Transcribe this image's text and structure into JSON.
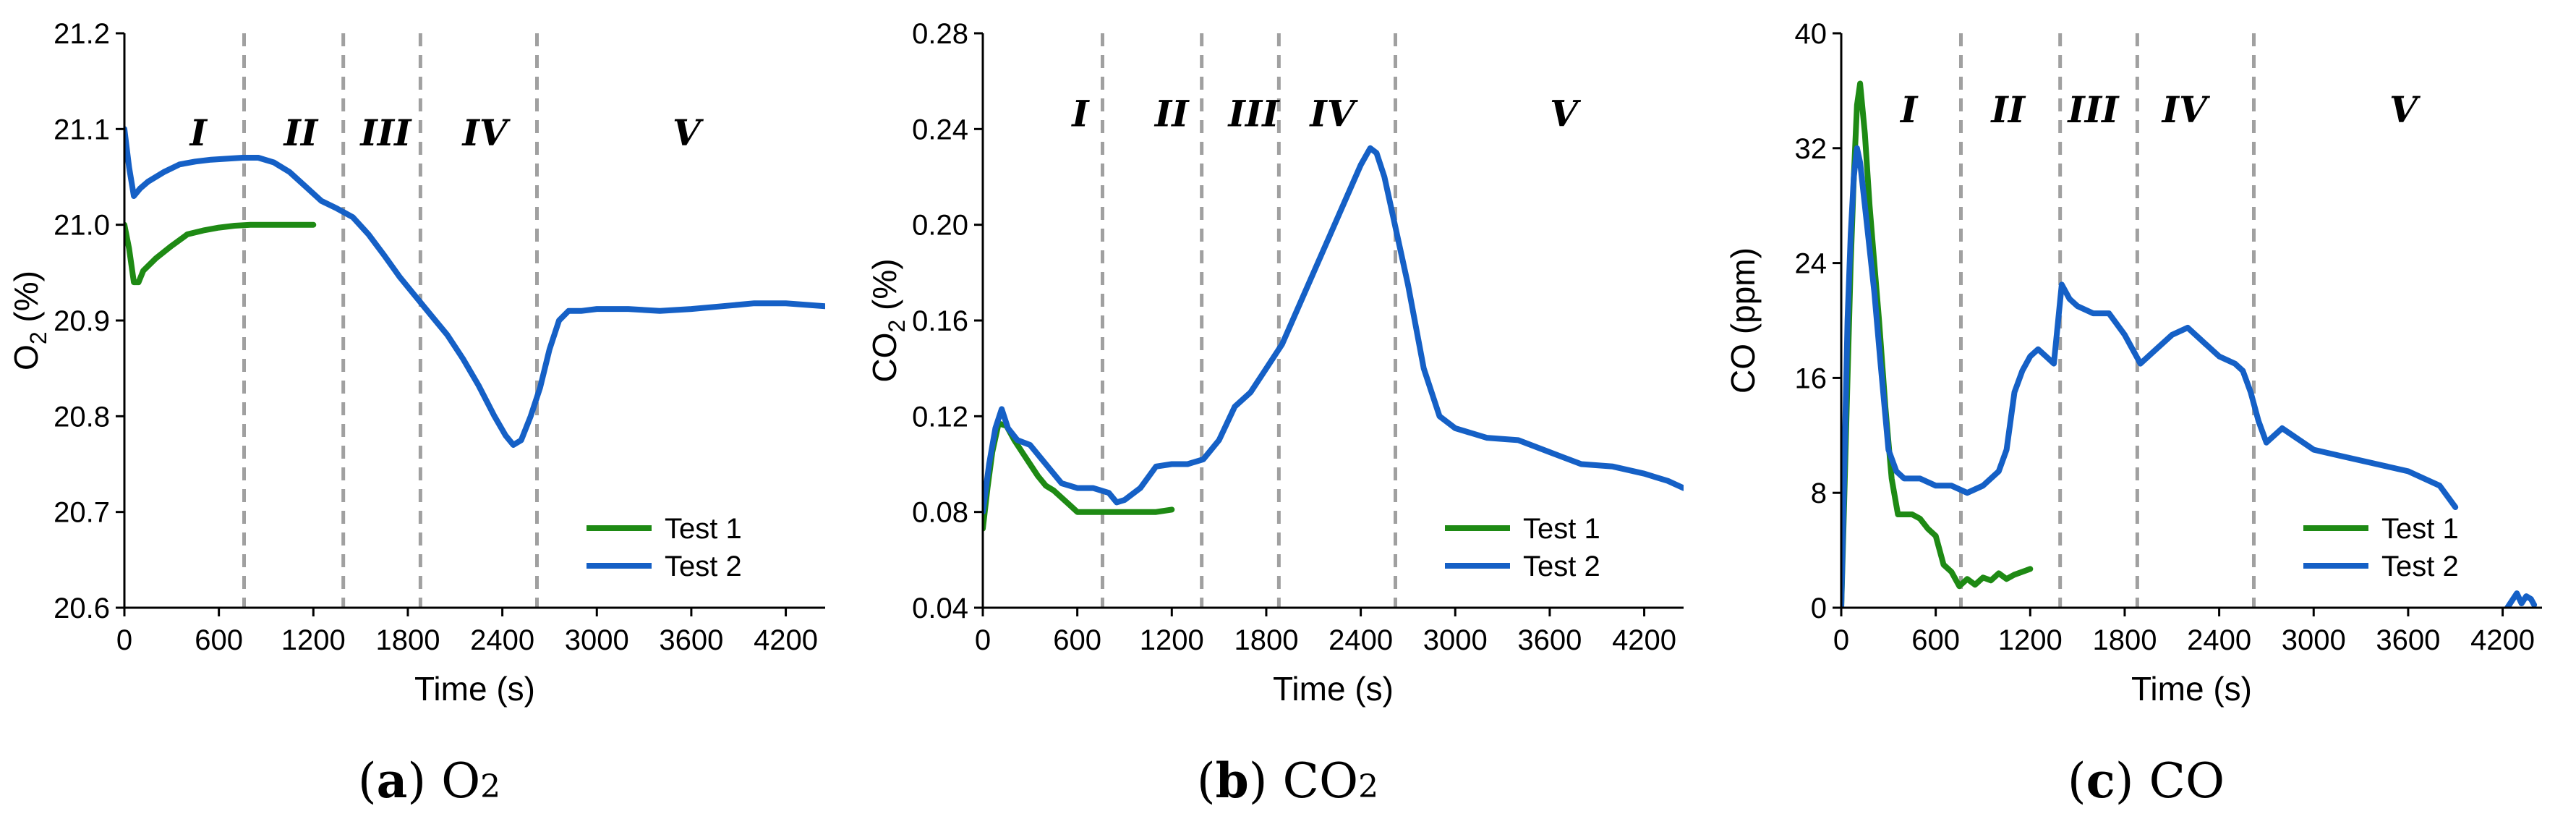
{
  "colors": {
    "test1": "#1e8a14",
    "test2": "#1560c6",
    "phase_line": "#a0a0a0",
    "axis": "#000000"
  },
  "x_axis": {
    "label": "Time (s)",
    "min": 0,
    "max": 4450,
    "ticks": [
      0,
      600,
      1200,
      1800,
      2400,
      3000,
      3600,
      4200
    ]
  },
  "phase_bounds": [
    760,
    1390,
    1880,
    2620
  ],
  "legend": [
    "Test 1",
    "Test 2"
  ],
  "chart_data": [
    {
      "type": "line",
      "panel_id": "a",
      "caption": {
        "letter": "a",
        "text": "O",
        "sub": "2"
      },
      "ylabel": {
        "main": "O",
        "sub": "2",
        "rest": " (%)"
      },
      "ylim": [
        20.6,
        21.2
      ],
      "yticks": [
        "20.6",
        "20.7",
        "20.8",
        "20.9",
        "21.0",
        "21.1",
        "21.2"
      ],
      "phases": [
        {
          "label": "I",
          "x": 470
        },
        {
          "label": "II",
          "x": 1120
        },
        {
          "label": "III",
          "x": 1660
        },
        {
          "label": "IV",
          "x": 2290
        },
        {
          "label": "V",
          "x": 3570
        }
      ],
      "phase_label_y": 21.095,
      "series": [
        {
          "name": "Test 1",
          "color": "#1e8a14",
          "x": [
            0,
            30,
            60,
            90,
            120,
            200,
            300,
            400,
            500,
            600,
            700,
            800,
            900,
            1000,
            1100,
            1200
          ],
          "y": [
            21.0,
            20.975,
            20.94,
            20.94,
            20.952,
            20.965,
            20.978,
            20.99,
            20.994,
            20.997,
            20.999,
            21.0,
            21.0,
            21.0,
            21.0,
            21.0
          ]
        },
        {
          "name": "Test 2",
          "color": "#1560c6",
          "x": [
            0,
            30,
            60,
            100,
            150,
            250,
            350,
            450,
            550,
            650,
            750,
            850,
            950,
            1050,
            1150,
            1250,
            1350,
            1450,
            1550,
            1650,
            1750,
            1850,
            1950,
            2050,
            2150,
            2250,
            2350,
            2420,
            2470,
            2520,
            2580,
            2640,
            2700,
            2760,
            2820,
            2900,
            3000,
            3200,
            3400,
            3600,
            3800,
            4000,
            4200,
            4450
          ],
          "y": [
            21.1,
            21.06,
            21.03,
            21.038,
            21.045,
            21.055,
            21.063,
            21.066,
            21.068,
            21.069,
            21.07,
            21.07,
            21.065,
            21.055,
            21.04,
            21.025,
            21.017,
            21.008,
            20.99,
            20.968,
            20.945,
            20.925,
            20.905,
            20.885,
            20.86,
            20.832,
            20.8,
            20.78,
            20.77,
            20.775,
            20.8,
            20.83,
            20.87,
            20.9,
            20.91,
            20.91,
            20.912,
            20.912,
            20.91,
            20.912,
            20.915,
            20.918,
            20.918,
            20.915
          ]
        }
      ]
    },
    {
      "type": "line",
      "panel_id": "b",
      "caption": {
        "letter": "b",
        "text": "CO",
        "sub": "2"
      },
      "ylabel": {
        "main": "CO",
        "sub": "2",
        "rest": " (%)"
      },
      "ylim": [
        0.04,
        0.28
      ],
      "yticks": [
        "0.04",
        "0.08",
        "0.12",
        "0.16",
        "0.20",
        "0.24",
        "0.28"
      ],
      "phases": [
        {
          "label": "I",
          "x": 620
        },
        {
          "label": "II",
          "x": 1200
        },
        {
          "label": "III",
          "x": 1720
        },
        {
          "label": "IV",
          "x": 2220
        },
        {
          "label": "V",
          "x": 3690
        }
      ],
      "phase_label_y": 0.246,
      "series": [
        {
          "name": "Test 1",
          "color": "#1e8a14",
          "x": [
            0,
            30,
            60,
            100,
            150,
            200,
            250,
            300,
            350,
            400,
            450,
            500,
            550,
            600,
            700,
            800,
            900,
            1000,
            1100,
            1200
          ],
          "y": [
            0.073,
            0.09,
            0.105,
            0.117,
            0.116,
            0.11,
            0.105,
            0.1,
            0.095,
            0.091,
            0.089,
            0.086,
            0.083,
            0.08,
            0.08,
            0.08,
            0.08,
            0.08,
            0.08,
            0.081
          ]
        },
        {
          "name": "Test 2",
          "color": "#1560c6",
          "x": [
            0,
            40,
            80,
            120,
            160,
            220,
            300,
            400,
            500,
            600,
            700,
            800,
            850,
            900,
            1000,
            1100,
            1200,
            1300,
            1400,
            1500,
            1600,
            1700,
            1800,
            1900,
            2000,
            2100,
            2200,
            2300,
            2400,
            2460,
            2500,
            2550,
            2600,
            2700,
            2800,
            2900,
            3000,
            3200,
            3400,
            3600,
            3800,
            4000,
            4200,
            4350,
            4450
          ],
          "y": [
            0.08,
            0.1,
            0.115,
            0.123,
            0.115,
            0.11,
            0.108,
            0.1,
            0.092,
            0.09,
            0.09,
            0.088,
            0.084,
            0.085,
            0.09,
            0.099,
            0.1,
            0.1,
            0.102,
            0.11,
            0.124,
            0.13,
            0.14,
            0.15,
            0.165,
            0.18,
            0.195,
            0.21,
            0.225,
            0.232,
            0.23,
            0.22,
            0.205,
            0.175,
            0.14,
            0.12,
            0.115,
            0.111,
            0.11,
            0.105,
            0.1,
            0.099,
            0.096,
            0.093,
            0.09
          ]
        }
      ]
    },
    {
      "type": "line",
      "panel_id": "c",
      "caption": {
        "letter": "c",
        "text": "CO",
        "sub": ""
      },
      "ylabel": {
        "main": "CO (ppm)",
        "sub": "",
        "rest": ""
      },
      "ylim": [
        0,
        40
      ],
      "yticks": [
        "0",
        "8",
        "16",
        "24",
        "32",
        "40"
      ],
      "phases": [
        {
          "label": "I",
          "x": 430
        },
        {
          "label": "II",
          "x": 1060
        },
        {
          "label": "III",
          "x": 1600
        },
        {
          "label": "IV",
          "x": 2180
        },
        {
          "label": "V",
          "x": 3570
        }
      ],
      "phase_label_y": 34.6,
      "series": [
        {
          "name": "Test 1",
          "color": "#1e8a14",
          "x": [
            0,
            20,
            40,
            60,
            80,
            100,
            120,
            150,
            180,
            210,
            240,
            280,
            320,
            360,
            400,
            450,
            500,
            550,
            600,
            650,
            700,
            750,
            800,
            850,
            900,
            950,
            1000,
            1050,
            1100,
            1150,
            1200
          ],
          "y": [
            0,
            8,
            16,
            24,
            30,
            35,
            36.5,
            33,
            28,
            24,
            20,
            14,
            9,
            6.5,
            6.5,
            6.5,
            6.2,
            5.5,
            5,
            3,
            2.5,
            1.5,
            2,
            1.6,
            2.1,
            1.9,
            2.4,
            2.0,
            2.3,
            2.5,
            2.7
          ]
        },
        {
          "name": "Test 2",
          "color": "#1560c6",
          "x": [
            0,
            20,
            40,
            60,
            80,
            100,
            120,
            150,
            180,
            210,
            250,
            300,
            350,
            400,
            500,
            600,
            700,
            800,
            900,
            1000,
            1050,
            1100,
            1150,
            1200,
            1250,
            1300,
            1350,
            1400,
            1450,
            1500,
            1600,
            1700,
            1800,
            1850,
            1900,
            2000,
            2100,
            2200,
            2300,
            2400,
            2500,
            2550,
            2600,
            2650,
            2700,
            2800,
            3000,
            3200,
            3400,
            3600,
            3700,
            3800,
            3900
          ],
          "y": [
            0,
            10,
            20,
            26,
            30,
            32,
            31,
            28,
            25,
            22,
            17,
            11,
            9.5,
            9,
            9,
            8.5,
            8.5,
            8,
            8.5,
            9.5,
            11,
            15,
            16.5,
            17.5,
            18,
            17.5,
            17,
            22.5,
            21.5,
            21,
            20.5,
            20.5,
            19,
            18,
            17,
            18,
            19,
            19.5,
            18.5,
            17.5,
            17,
            16.5,
            15,
            13,
            11.5,
            12.5,
            11,
            10.5,
            10,
            9.5,
            9,
            8.5,
            7
          ]
        },
        {
          "name": "Test 2",
          "color": "#1560c6",
          "x": [
            4230,
            4260,
            4290,
            4320,
            4350,
            4380,
            4400
          ],
          "y": [
            0,
            0.5,
            1.0,
            0.3,
            0.8,
            0.6,
            0.2
          ]
        }
      ]
    }
  ]
}
